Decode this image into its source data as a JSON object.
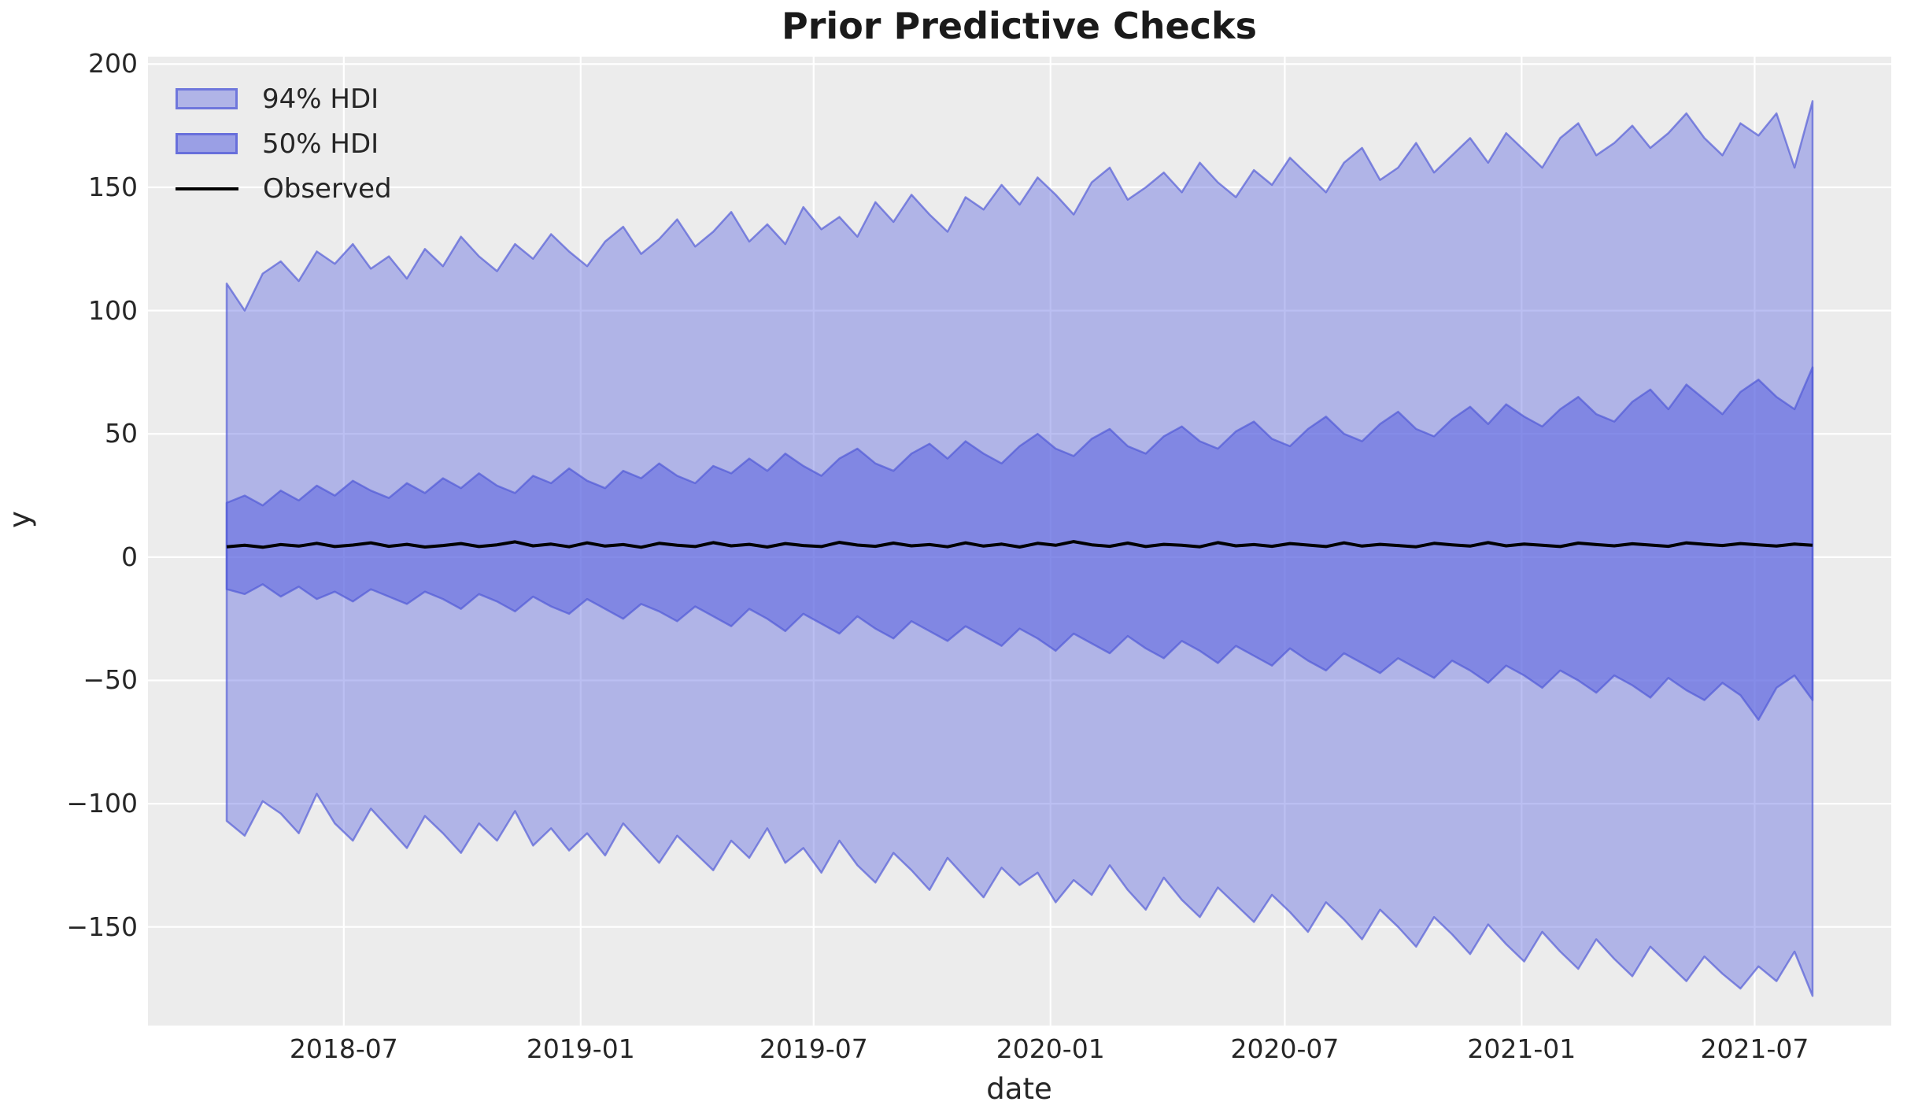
{
  "title": "Prior Predictive Checks",
  "xlabel": "date",
  "ylabel": "y",
  "legend": {
    "items": [
      {
        "label": "94% HDI",
        "swatch": "patch-light"
      },
      {
        "label": "50% HDI",
        "swatch": "patch-dark"
      },
      {
        "label": "Observed",
        "swatch": "line"
      }
    ]
  },
  "colors": {
    "figure_bg": "#ffffff",
    "axes_bg": "#ececec",
    "grid": "#ffffff",
    "hdi94_fill": "rgba(94,103,224,0.42)",
    "hdi50_fill": "rgba(94,103,224,0.58)",
    "band_edge": "rgba(77,86,214,0.65)",
    "observed_line": "#000000",
    "text": "#262626"
  },
  "chart_data": {
    "type": "area",
    "title": "Prior Predictive Checks",
    "xlabel": "date",
    "ylabel": "y",
    "grid": true,
    "legend_position": "upper left",
    "ylim": [
      -190,
      203
    ],
    "x_start": "2018-04-01",
    "x_step_days": 14,
    "n_points": 89,
    "x_ticks": [
      {
        "date": "2018-07-01",
        "label": "2018-07"
      },
      {
        "date": "2019-01-01",
        "label": "2019-01"
      },
      {
        "date": "2019-07-01",
        "label": "2019-07"
      },
      {
        "date": "2020-01-01",
        "label": "2020-01"
      },
      {
        "date": "2020-07-01",
        "label": "2020-07"
      },
      {
        "date": "2021-01-01",
        "label": "2021-01"
      },
      {
        "date": "2021-07-01",
        "label": "2021-07"
      }
    ],
    "y_ticks": [
      {
        "value": 200,
        "label": "200"
      },
      {
        "value": 150,
        "label": "150"
      },
      {
        "value": 100,
        "label": "100"
      },
      {
        "value": 50,
        "label": "50"
      },
      {
        "value": 0,
        "label": "0"
      },
      {
        "value": -50,
        "label": "−50"
      },
      {
        "value": -100,
        "label": "−100"
      },
      {
        "value": -150,
        "label": "−150"
      }
    ],
    "series": [
      {
        "name": "94% HDI upper",
        "values": [
          111,
          100,
          115,
          120,
          112,
          124,
          119,
          127,
          117,
          122,
          113,
          125,
          118,
          130,
          122,
          116,
          127,
          121,
          131,
          124,
          118,
          128,
          134,
          123,
          129,
          137,
          126,
          132,
          140,
          128,
          135,
          127,
          142,
          133,
          138,
          130,
          144,
          136,
          147,
          139,
          132,
          146,
          141,
          151,
          143,
          154,
          147,
          139,
          152,
          158,
          145,
          150,
          156,
          148,
          160,
          152,
          146,
          157,
          151,
          162,
          155,
          148,
          160,
          166,
          153,
          158,
          168,
          156,
          163,
          170,
          160,
          172,
          165,
          158,
          170,
          176,
          163,
          168,
          175,
          166,
          172,
          180,
          170,
          163,
          176,
          171,
          180,
          158,
          185
        ]
      },
      {
        "name": "94% HDI lower",
        "values": [
          -107,
          -113,
          -99,
          -104,
          -112,
          -96,
          -108,
          -115,
          -102,
          -110,
          -118,
          -105,
          -112,
          -120,
          -108,
          -115,
          -103,
          -117,
          -110,
          -119,
          -112,
          -121,
          -108,
          -116,
          -124,
          -113,
          -120,
          -127,
          -115,
          -122,
          -110,
          -124,
          -118,
          -128,
          -115,
          -125,
          -132,
          -120,
          -127,
          -135,
          -122,
          -130,
          -138,
          -126,
          -133,
          -128,
          -140,
          -131,
          -137,
          -125,
          -135,
          -143,
          -130,
          -139,
          -146,
          -134,
          -141,
          -148,
          -137,
          -144,
          -152,
          -140,
          -147,
          -155,
          -143,
          -150,
          -158,
          -146,
          -153,
          -161,
          -149,
          -157,
          -164,
          -152,
          -160,
          -167,
          -155,
          -163,
          -170,
          -158,
          -165,
          -172,
          -162,
          -169,
          -175,
          -166,
          -172,
          -160,
          -178
        ]
      },
      {
        "name": "50% HDI upper",
        "values": [
          22,
          25,
          21,
          27,
          23,
          29,
          25,
          31,
          27,
          24,
          30,
          26,
          32,
          28,
          34,
          29,
          26,
          33,
          30,
          36,
          31,
          28,
          35,
          32,
          38,
          33,
          30,
          37,
          34,
          40,
          35,
          42,
          37,
          33,
          40,
          44,
          38,
          35,
          42,
          46,
          40,
          47,
          42,
          38,
          45,
          50,
          44,
          41,
          48,
          52,
          45,
          42,
          49,
          53,
          47,
          44,
          51,
          55,
          48,
          45,
          52,
          57,
          50,
          47,
          54,
          59,
          52,
          49,
          56,
          61,
          54,
          62,
          57,
          53,
          60,
          65,
          58,
          55,
          63,
          68,
          60,
          70,
          64,
          58,
          67,
          72,
          65,
          60,
          77
        ]
      },
      {
        "name": "50% HDI lower",
        "values": [
          -13,
          -15,
          -11,
          -16,
          -12,
          -17,
          -14,
          -18,
          -13,
          -16,
          -19,
          -14,
          -17,
          -21,
          -15,
          -18,
          -22,
          -16,
          -20,
          -23,
          -17,
          -21,
          -25,
          -19,
          -22,
          -26,
          -20,
          -24,
          -28,
          -21,
          -25,
          -30,
          -23,
          -27,
          -31,
          -24,
          -29,
          -33,
          -26,
          -30,
          -34,
          -28,
          -32,
          -36,
          -29,
          -33,
          -38,
          -31,
          -35,
          -39,
          -32,
          -37,
          -41,
          -34,
          -38,
          -43,
          -36,
          -40,
          -44,
          -37,
          -42,
          -46,
          -39,
          -43,
          -47,
          -41,
          -45,
          -49,
          -42,
          -46,
          -51,
          -44,
          -48,
          -53,
          -46,
          -50,
          -55,
          -48,
          -52,
          -57,
          -49,
          -54,
          -58,
          -51,
          -56,
          -66,
          -53,
          -48,
          -58
        ]
      },
      {
        "name": "Observed",
        "values": [
          4.2,
          4.8,
          4.0,
          5.1,
          4.5,
          5.6,
          4.3,
          4.9,
          5.8,
          4.4,
          5.2,
          4.1,
          4.7,
          5.5,
          4.3,
          5.0,
          6.2,
          4.6,
          5.3,
          4.2,
          5.8,
          4.5,
          5.1,
          4.0,
          5.6,
          4.8,
          4.3,
          5.9,
          4.6,
          5.2,
          4.1,
          5.5,
          4.7,
          4.3,
          6.0,
          4.9,
          4.4,
          5.7,
          4.6,
          5.1,
          4.2,
          5.8,
          4.5,
          5.3,
          4.1,
          5.6,
          4.8,
          6.3,
          5.0,
          4.4,
          5.7,
          4.3,
          5.2,
          4.8,
          4.2,
          5.9,
          4.6,
          5.1,
          4.4,
          5.5,
          4.9,
          4.3,
          5.8,
          4.5,
          5.2,
          4.7,
          4.2,
          5.6,
          5.0,
          4.5,
          5.9,
          4.6,
          5.3,
          4.8,
          4.3,
          5.7,
          5.1,
          4.6,
          5.4,
          4.9,
          4.4,
          5.8,
          5.2,
          4.7,
          5.5,
          5.0,
          4.5,
          5.3,
          4.8
        ]
      }
    ]
  }
}
